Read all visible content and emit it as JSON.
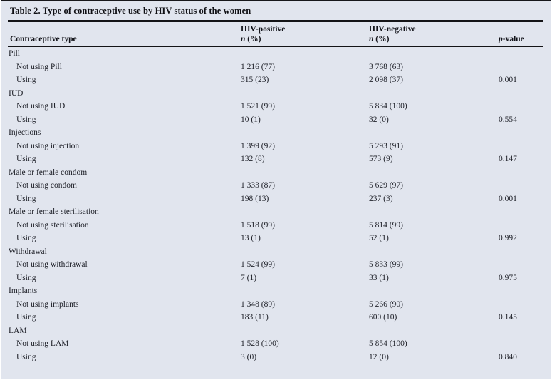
{
  "table": {
    "title": "Table 2. Type of contraceptive use by HIV status of the women",
    "header": {
      "col1": "Contraceptive type",
      "hiv_positive": "HIV-positive",
      "hiv_negative": "HIV-negative",
      "n_symbol": "n",
      "n_suffix": " (%)",
      "p_symbol": "p",
      "p_suffix": "-value"
    },
    "groups": [
      {
        "label": "Pill",
        "rows": [
          {
            "label": "Not using Pill",
            "hiv_positive": "1 216 (77)",
            "hiv_negative": "3 768 (63)",
            "p_value": ""
          },
          {
            "label": "Using",
            "hiv_positive": "315 (23)",
            "hiv_negative": "2 098 (37)",
            "p_value": "0.001"
          }
        ]
      },
      {
        "label": "IUD",
        "rows": [
          {
            "label": "Not using IUD",
            "hiv_positive": "1 521 (99)",
            "hiv_negative": "5 834 (100)",
            "p_value": ""
          },
          {
            "label": "Using",
            "hiv_positive": "10 (1)",
            "hiv_negative": "32 (0)",
            "p_value": "0.554"
          }
        ]
      },
      {
        "label": "Injections",
        "rows": [
          {
            "label": "Not using injection",
            "hiv_positive": "1 399 (92)",
            "hiv_negative": "5 293 (91)",
            "p_value": ""
          },
          {
            "label": "Using",
            "hiv_positive": "132 (8)",
            "hiv_negative": "573 (9)",
            "p_value": "0.147"
          }
        ]
      },
      {
        "label": "Male or female condom",
        "rows": [
          {
            "label": "Not using condom",
            "hiv_positive": "1 333 (87)",
            "hiv_negative": "5 629 (97)",
            "p_value": ""
          },
          {
            "label": "Using",
            "hiv_positive": "198 (13)",
            "hiv_negative": "237 (3)",
            "p_value": "0.001"
          }
        ]
      },
      {
        "label": "Male or female sterilisation",
        "rows": [
          {
            "label": "Not using sterilisation",
            "hiv_positive": "1 518 (99)",
            "hiv_negative": "5 814 (99)",
            "p_value": ""
          },
          {
            "label": "Using",
            "hiv_positive": "13 (1)",
            "hiv_negative": "52 (1)",
            "p_value": "0.992"
          }
        ]
      },
      {
        "label": "Withdrawal",
        "rows": [
          {
            "label": "Not using withdrawal",
            "hiv_positive": "1 524 (99)",
            "hiv_negative": "5 833 (99)",
            "p_value": ""
          },
          {
            "label": "Using",
            "hiv_positive": "7 (1)",
            "hiv_negative": "33 (1)",
            "p_value": "0.975"
          }
        ]
      },
      {
        "label": "Implants",
        "rows": [
          {
            "label": "Not using implants",
            "hiv_positive": "1 348 (89)",
            "hiv_negative": "5 266 (90)",
            "p_value": ""
          },
          {
            "label": "Using",
            "hiv_positive": "183 (11)",
            "hiv_negative": "600 (10)",
            "p_value": "0.145"
          }
        ]
      },
      {
        "label": "LAM",
        "rows": [
          {
            "label": "Not using LAM",
            "hiv_positive": "1 528 (100)",
            "hiv_negative": "5 854 (100)",
            "p_value": ""
          },
          {
            "label": "Using",
            "hiv_positive": "3 (0)",
            "hiv_negative": "12 (0)",
            "p_value": "0.840"
          }
        ]
      }
    ]
  }
}
